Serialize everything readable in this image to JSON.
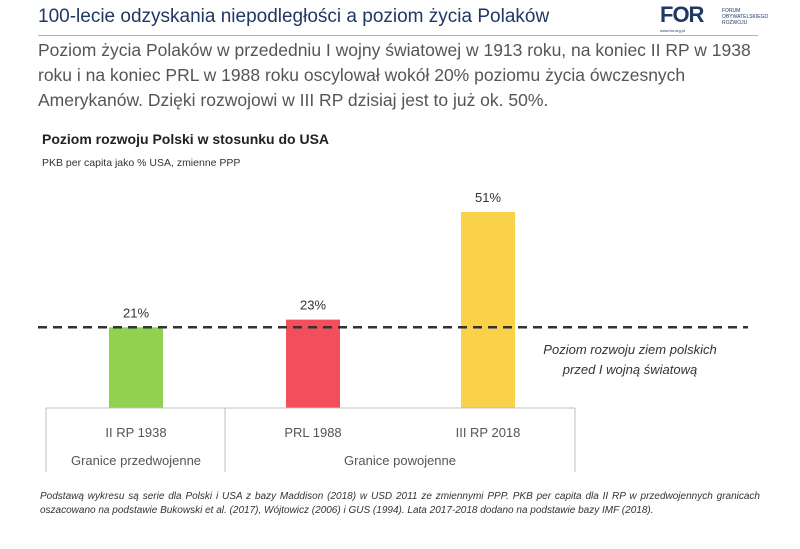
{
  "header": {
    "title": "100-lecie odzyskania niepodległości a poziom życia Polaków",
    "logo_text": "FOR",
    "logo_sub": [
      "FORUM",
      "OBYWATELSKIEGO",
      "ROZWOJU"
    ],
    "logo_url": "www.for.org.pl"
  },
  "intro": "Poziom życia Polaków w przededniu I wojny światowej w 1913 roku, na koniec II RP w 1938 roku i na koniec PRL w 1988 roku oscylował wokół 20% poziomu życia ówczesnych Amerykanów. Dzięki rozwojowi w III RP dzisiaj jest to już ok. 50%.",
  "chart_data": {
    "type": "bar",
    "title": "Poziom rozwoju Polski w stosunku do USA",
    "subtitle": "PKB per capita jako % USA, zmienne PPP",
    "categories": [
      "II RP 1938",
      "PRL 1988",
      "III RP 2018"
    ],
    "values": [
      21,
      23,
      51
    ],
    "value_labels": [
      "21%",
      "23%",
      "51%"
    ],
    "colors": [
      "#92d050",
      "#f34e5c",
      "#fad24a"
    ],
    "reference_line": {
      "value": 21,
      "label_lines": [
        "Poziom rozwoju ziem polskich",
        "przed I wojną światową"
      ]
    },
    "groups": [
      {
        "label": "Granice przedwojenne",
        "categories": [
          "II RP 1938"
        ]
      },
      {
        "label": "Granice powojenne",
        "categories": [
          "PRL 1988",
          "III RP 2018"
        ]
      }
    ],
    "ylim": [
      0,
      51
    ],
    "grid": false,
    "legend": "none"
  },
  "footnote": "Podstawą wykresu są serie dla Polski i USA z bazy Maddison (2018) w USD 2011 ze zmiennymi PPP. PKB per capita dla II RP w przedwojennych granicach oszacowano na podstawie Bukowski et al. (2017), Wójtowicz (2006) i GUS (1994). Lata 2017-2018 dodano na podstawie bazy IMF (2018)."
}
